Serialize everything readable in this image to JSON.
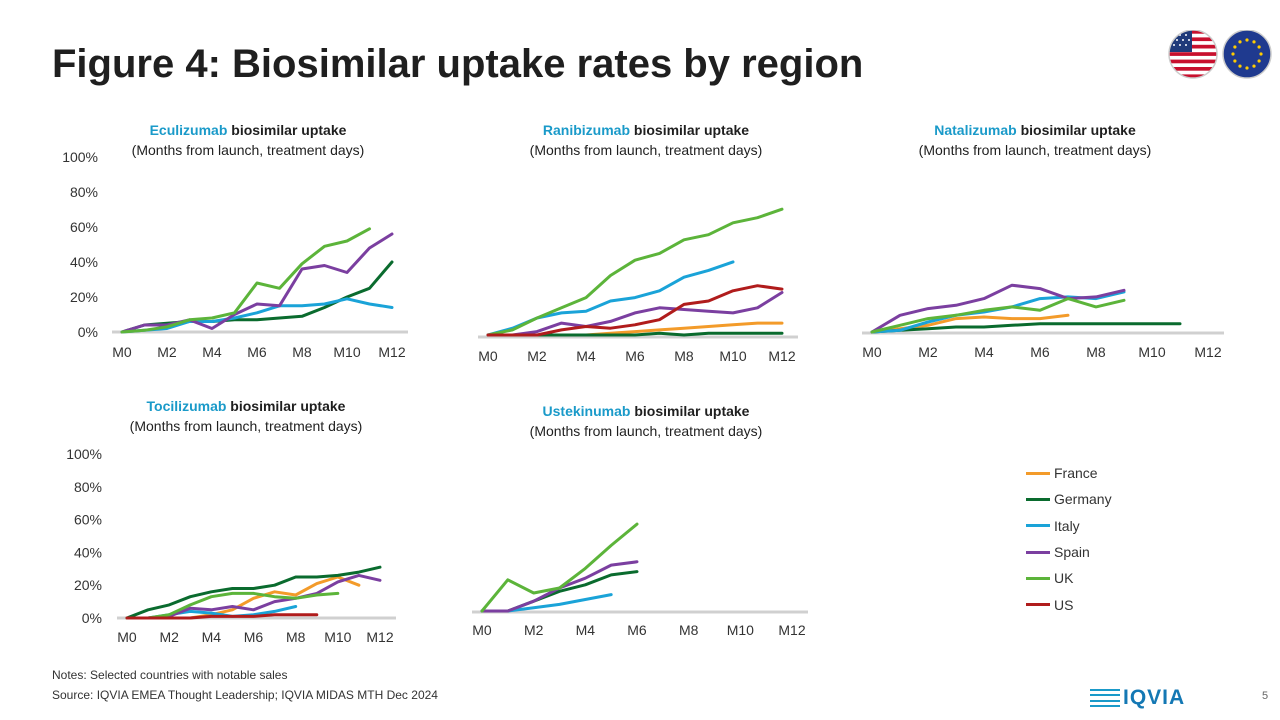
{
  "slide": {
    "title": "Figure 4: Biosimilar uptake rates by region",
    "notes": "Notes: Selected countries with notable sales",
    "source": "Source: IQVIA EMEA Thought Leadership; IQVIA MIDAS MTH Dec 2024",
    "logo": "IQVIA",
    "page_number": "5"
  },
  "colors": {
    "France": "#f39b2a",
    "Germany": "#0a6b2e",
    "Italy": "#1aa3d8",
    "Spain": "#7b3fa0",
    "UK": "#5cb43a",
    "US": "#b01c1c",
    "axis": "#d0d0d0"
  },
  "legend": [
    "France",
    "Germany",
    "Italy",
    "Spain",
    "UK",
    "US"
  ],
  "chart_data": [
    {
      "type": "line",
      "drug": "Eculizumab",
      "title_rest": "biosimilar uptake",
      "subtitle": "(Months from launch, treatment days)",
      "x_ticks": [
        "M0",
        "M2",
        "M4",
        "M6",
        "M8",
        "M10",
        "M12"
      ],
      "y_ticks": [
        "0%",
        "20%",
        "40%",
        "60%",
        "80%",
        "100%"
      ],
      "ylim": [
        0,
        100
      ],
      "series": [
        {
          "name": "Germany",
          "x": [
            0,
            1,
            2,
            3,
            4,
            5,
            6,
            7,
            8,
            9,
            10,
            11,
            12
          ],
          "values": [
            0,
            4,
            5,
            6,
            6,
            7,
            7,
            8,
            9,
            14,
            20,
            25,
            40
          ]
        },
        {
          "name": "Italy",
          "x": [
            0,
            1,
            2,
            3,
            4,
            5,
            6,
            7,
            8,
            9,
            10,
            11,
            12
          ],
          "values": [
            0,
            1,
            2,
            6,
            6,
            8,
            11,
            15,
            15,
            16,
            19,
            16,
            14
          ]
        },
        {
          "name": "Spain",
          "x": [
            0,
            1,
            2,
            3,
            4,
            5,
            6,
            7,
            8,
            9,
            10,
            11,
            12
          ],
          "values": [
            0,
            4,
            4,
            7,
            2,
            10,
            16,
            15,
            36,
            38,
            34,
            48,
            56
          ]
        },
        {
          "name": "UK",
          "x": [
            0,
            1,
            2,
            3,
            4,
            5,
            6,
            7,
            8,
            9,
            10,
            11
          ],
          "values": [
            0,
            1,
            3,
            7,
            8,
            11,
            28,
            25,
            39,
            49,
            52,
            59
          ]
        }
      ]
    },
    {
      "type": "line",
      "drug": "Ranibizumab",
      "title_rest": "biosimilar uptake",
      "subtitle": "(Months from launch, treatment days)",
      "x_ticks": [
        "M0",
        "M2",
        "M4",
        "M6",
        "M8",
        "M10",
        "M12"
      ],
      "y_ticks": [],
      "ylim": [
        0,
        100
      ],
      "series": [
        {
          "name": "France",
          "x": [
            0,
            1,
            2,
            3,
            4,
            5,
            6,
            7,
            8,
            9,
            10,
            11,
            12
          ],
          "values": [
            0,
            0,
            0,
            0,
            0,
            1,
            2,
            3,
            4,
            5,
            6,
            7,
            7
          ]
        },
        {
          "name": "Germany",
          "x": [
            0,
            1,
            2,
            3,
            4,
            5,
            6,
            7,
            8,
            9,
            10,
            11,
            12
          ],
          "values": [
            0,
            0,
            0,
            0,
            0,
            0,
            0,
            1,
            0,
            1,
            1,
            1,
            1
          ]
        },
        {
          "name": "Italy",
          "x": [
            0,
            1,
            2,
            3,
            4,
            5,
            6,
            7,
            8,
            9,
            10
          ],
          "values": [
            0,
            4,
            10,
            13,
            14,
            20,
            22,
            26,
            34,
            38,
            43
          ]
        },
        {
          "name": "Spain",
          "x": [
            0,
            1,
            2,
            3,
            4,
            5,
            6,
            7,
            8,
            9,
            10,
            11,
            12
          ],
          "values": [
            0,
            0,
            2,
            7,
            5,
            8,
            13,
            16,
            15,
            14,
            13,
            16,
            25
          ]
        },
        {
          "name": "UK",
          "x": [
            0,
            1,
            2,
            3,
            4,
            5,
            6,
            7,
            8,
            9,
            10,
            11,
            12
          ],
          "values": [
            0,
            3,
            10,
            16,
            22,
            35,
            44,
            48,
            56,
            59,
            66,
            69,
            74
          ]
        },
        {
          "name": "US",
          "x": [
            0,
            1,
            2,
            3,
            4,
            5,
            6,
            7,
            8,
            9,
            10,
            11,
            12
          ],
          "values": [
            0,
            0,
            0,
            3,
            5,
            4,
            6,
            9,
            18,
            20,
            26,
            29,
            27
          ]
        }
      ]
    },
    {
      "type": "line",
      "drug": "Natalizumab",
      "title_rest": "biosimilar uptake",
      "subtitle": "(Months from launch, treatment days)",
      "x_ticks": [
        "M0",
        "M2",
        "M4",
        "M6",
        "M8",
        "M10",
        "M12"
      ],
      "y_ticks": [],
      "ylim": [
        0,
        100
      ],
      "series": [
        {
          "name": "France",
          "x": [
            0,
            1,
            2,
            3,
            4,
            5,
            6,
            7
          ],
          "values": [
            0,
            2,
            4,
            8,
            9,
            8,
            8,
            10
          ]
        },
        {
          "name": "Germany",
          "x": [
            0,
            1,
            2,
            3,
            4,
            5,
            6,
            7,
            8,
            9,
            10,
            11
          ],
          "values": [
            0,
            1,
            2,
            3,
            3,
            4,
            5,
            5,
            5,
            5,
            5,
            5
          ]
        },
        {
          "name": "Italy",
          "x": [
            0,
            1,
            2,
            3,
            4,
            5,
            6,
            7,
            8,
            9
          ],
          "values": [
            0,
            1,
            6,
            10,
            12,
            15,
            20,
            21,
            20,
            24
          ]
        },
        {
          "name": "Spain",
          "x": [
            0,
            1,
            2,
            3,
            4,
            5,
            6,
            7,
            8,
            9
          ],
          "values": [
            0,
            10,
            14,
            16,
            20,
            28,
            26,
            20,
            21,
            25
          ]
        },
        {
          "name": "UK",
          "x": [
            0,
            1,
            2,
            3,
            4,
            5,
            6,
            7,
            8,
            9
          ],
          "values": [
            0,
            4,
            8,
            10,
            13,
            15,
            13,
            20,
            15,
            19
          ]
        }
      ]
    },
    {
      "type": "line",
      "drug": "Tocilizumab",
      "title_rest": "biosimilar uptake",
      "subtitle": "(Months from launch, treatment days)",
      "x_ticks": [
        "M0",
        "M2",
        "M4",
        "M6",
        "M8",
        "M10",
        "M12"
      ],
      "y_ticks": [
        "0%",
        "20%",
        "40%",
        "60%",
        "80%",
        "100%"
      ],
      "ylim": [
        0,
        100
      ],
      "series": [
        {
          "name": "France",
          "x": [
            0,
            1,
            2,
            3,
            4,
            5,
            6,
            7,
            8,
            9,
            10,
            11
          ],
          "values": [
            0,
            0,
            0,
            0,
            2,
            5,
            12,
            16,
            14,
            21,
            25,
            20
          ]
        },
        {
          "name": "Germany",
          "x": [
            0,
            1,
            2,
            3,
            4,
            5,
            6,
            7,
            8,
            9,
            10,
            11,
            12
          ],
          "values": [
            0,
            5,
            8,
            13,
            16,
            18,
            18,
            20,
            25,
            25,
            26,
            28,
            31
          ]
        },
        {
          "name": "Italy",
          "x": [
            0,
            1,
            2,
            3,
            4,
            5,
            6,
            7,
            8
          ],
          "values": [
            0,
            0,
            2,
            4,
            3,
            1,
            2,
            4,
            7
          ]
        },
        {
          "name": "Spain",
          "x": [
            0,
            1,
            2,
            3,
            4,
            5,
            6,
            7,
            8,
            9,
            10,
            11,
            12
          ],
          "values": [
            0,
            0,
            1,
            6,
            5,
            7,
            5,
            10,
            12,
            15,
            22,
            26,
            23
          ]
        },
        {
          "name": "UK",
          "x": [
            0,
            1,
            2,
            3,
            4,
            5,
            6,
            7,
            8,
            9,
            10
          ],
          "values": [
            0,
            0,
            2,
            8,
            13,
            15,
            15,
            13,
            12,
            14,
            15
          ]
        },
        {
          "name": "US",
          "x": [
            0,
            1,
            2,
            3,
            4,
            5,
            6,
            7,
            8,
            9
          ],
          "values": [
            0,
            0,
            0,
            0,
            1,
            1,
            1,
            2,
            2,
            2
          ]
        }
      ]
    },
    {
      "type": "line",
      "drug": "Ustekinumab",
      "title_rest": "biosimilar uptake",
      "subtitle": "(Months from launch, treatment days)",
      "x_ticks": [
        "M0",
        "M2",
        "M4",
        "M6",
        "M8",
        "M10",
        "M12"
      ],
      "y_ticks": [],
      "ylim": [
        0,
        100
      ],
      "series": [
        {
          "name": "Germany",
          "x": [
            0,
            1,
            2,
            3,
            4,
            5,
            6
          ],
          "values": [
            0,
            0,
            6,
            12,
            16,
            22,
            24
          ]
        },
        {
          "name": "Italy",
          "x": [
            0,
            1,
            2,
            3,
            4,
            5
          ],
          "values": [
            0,
            0,
            2,
            4,
            7,
            10
          ]
        },
        {
          "name": "Spain",
          "x": [
            0,
            1,
            2,
            3,
            4,
            5,
            6
          ],
          "values": [
            0,
            0,
            6,
            14,
            20,
            28,
            30
          ]
        },
        {
          "name": "UK",
          "x": [
            0,
            1,
            2,
            3,
            4,
            5,
            6
          ],
          "values": [
            0,
            19,
            11,
            14,
            26,
            40,
            53
          ]
        }
      ]
    }
  ]
}
